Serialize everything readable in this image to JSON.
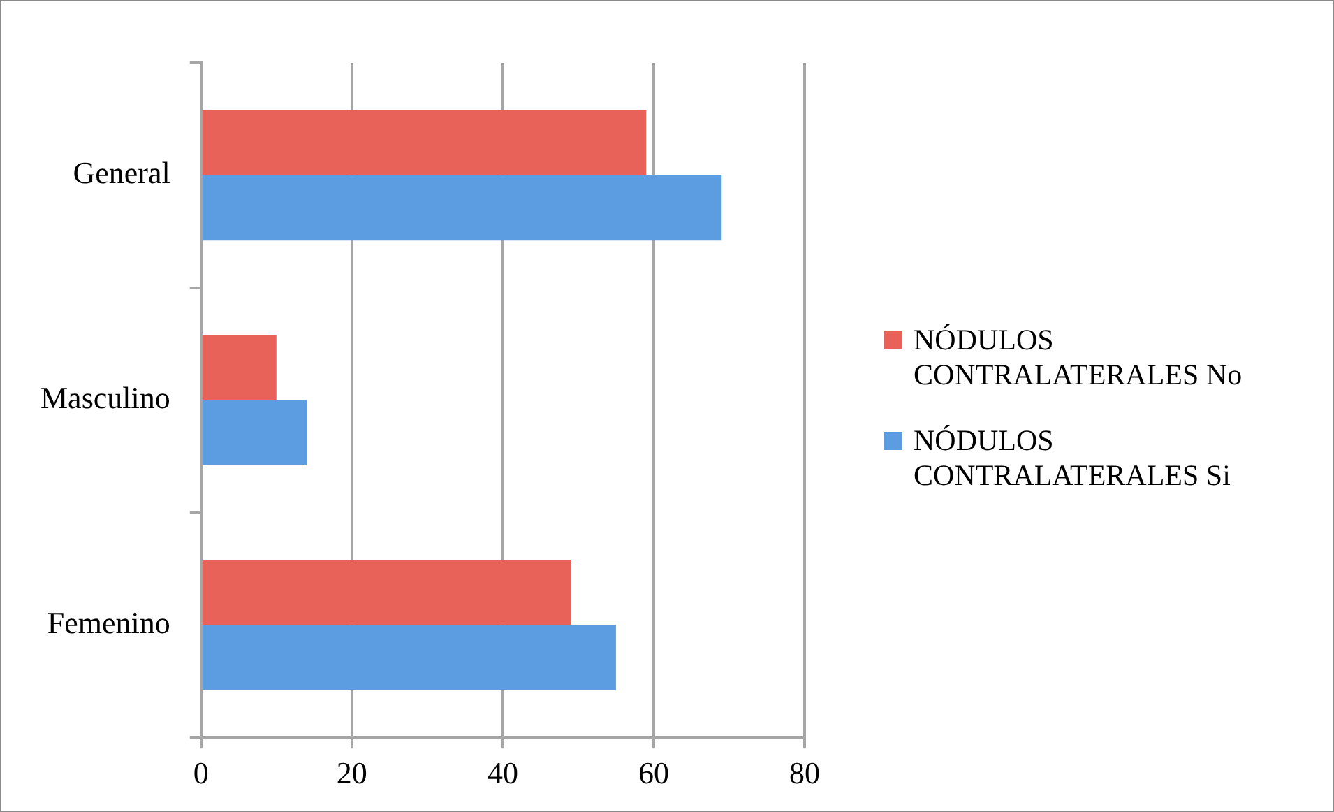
{
  "chart_data": {
    "type": "bar",
    "orientation": "horizontal",
    "categories": [
      "General",
      "Masculino",
      "Femenino"
    ],
    "series": [
      {
        "name": "NÓDULOS CONTRALATERALES No",
        "color": "#e8625a",
        "values": [
          59,
          10,
          49
        ]
      },
      {
        "name": "NÓDULOS CONTRALATERALES Si",
        "color": "#5b9de0",
        "values": [
          69,
          14,
          55
        ]
      }
    ],
    "xlim": [
      0,
      80
    ],
    "xticks": [
      0,
      20,
      40,
      60,
      80
    ],
    "grid": "x",
    "legend": "right"
  }
}
